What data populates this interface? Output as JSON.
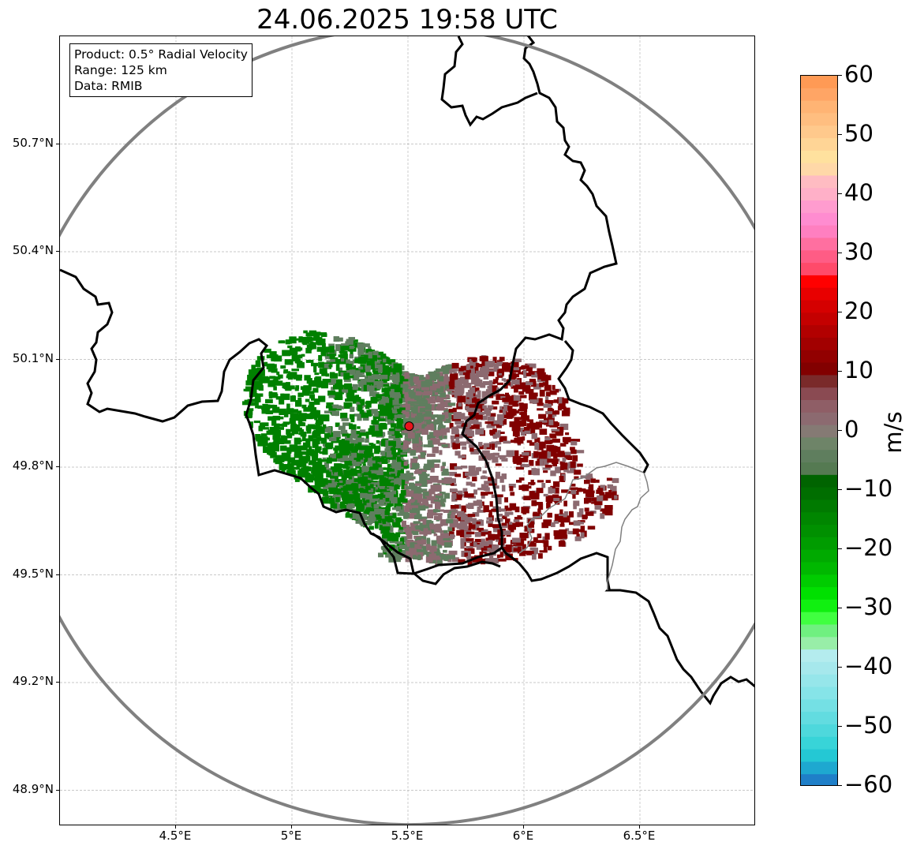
{
  "title": "24.06.2025 19:58 UTC",
  "info_box": {
    "product": "Product: 0.5° Radial Velocity",
    "range": "Range: 125 km",
    "source": "Data: RMIB"
  },
  "axes": {
    "lon_range": [
      4.0,
      7.0
    ],
    "lat_range": [
      48.8,
      51.0
    ],
    "x_ticks": [
      {
        "value": 4.5,
        "label": "4.5°E"
      },
      {
        "value": 5.0,
        "label": "5°E"
      },
      {
        "value": 5.5,
        "label": "5.5°E"
      },
      {
        "value": 6.0,
        "label": "6°E"
      },
      {
        "value": 6.5,
        "label": "6.5°E"
      }
    ],
    "y_ticks": [
      {
        "value": 50.7,
        "label": "50.7°N"
      },
      {
        "value": 50.4,
        "label": "50.4°N"
      },
      {
        "value": 50.1,
        "label": "50.1°N"
      },
      {
        "value": 49.8,
        "label": "49.8°N"
      },
      {
        "value": 49.5,
        "label": "49.5°N"
      },
      {
        "value": 49.2,
        "label": "49.2°N"
      },
      {
        "value": 48.9,
        "label": "48.9°N"
      }
    ],
    "grid": true
  },
  "radar": {
    "site_lon": 5.505,
    "site_lat": 49.914,
    "range_km": 125,
    "site_marker_color": "#e8141c",
    "range_ring_color": "#808080"
  },
  "colorbar": {
    "unit": "m/s",
    "range": [
      -60,
      60
    ],
    "ticks": [
      {
        "value": 60,
        "label": "60"
      },
      {
        "value": 50,
        "label": "50"
      },
      {
        "value": 40,
        "label": "40"
      },
      {
        "value": 30,
        "label": "30"
      },
      {
        "value": 20,
        "label": "20"
      },
      {
        "value": 10,
        "label": "10"
      },
      {
        "value": 0,
        "label": "0"
      },
      {
        "value": -10,
        "label": "−10"
      },
      {
        "value": -20,
        "label": "−20"
      },
      {
        "value": -30,
        "label": "−30"
      },
      {
        "value": -40,
        "label": "−40"
      },
      {
        "value": -50,
        "label": "−50"
      },
      {
        "value": -60,
        "label": "−60"
      }
    ],
    "colors_top_to_bottom": [
      "#ff9a55",
      "#ffa565",
      "#ffb474",
      "#ffbe80",
      "#ffc98c",
      "#ffd596",
      "#ffe19e",
      "#ffd8a8",
      "#ffbcc2",
      "#ffb0c8",
      "#ff9ccf",
      "#ff8cd0",
      "#ff7fc0",
      "#ff6fa0",
      "#ff5c85",
      "#ff4a6a",
      "#ff0000",
      "#e80000",
      "#d50000",
      "#c40000",
      "#b20000",
      "#a20000",
      "#920000",
      "#820000",
      "#7a2a2a",
      "#8a4a52",
      "#8f5e66",
      "#8c6a70",
      "#857a74",
      "#6e8468",
      "#5f7e5e",
      "#557a52",
      "#006400",
      "#006e00",
      "#007a00",
      "#008600",
      "#009000",
      "#009c00",
      "#00aa00",
      "#00b800",
      "#00cc00",
      "#00e000",
      "#10f010",
      "#40ff40",
      "#70f080",
      "#98eea8",
      "#b4ecee",
      "#a6e8ec",
      "#96e6ea",
      "#86e4e8",
      "#74e0e4",
      "#62dce0",
      "#4ed8dc",
      "#38d4d8",
      "#24c8d4",
      "#1ea8d0",
      "#1f7fc8"
    ]
  },
  "velocity_field": {
    "inbound_color": "#008000",
    "neutral_inbound_color": "#5f7e5e",
    "neutral_outbound_color": "#8c6a70",
    "outbound_color": "#800000"
  }
}
